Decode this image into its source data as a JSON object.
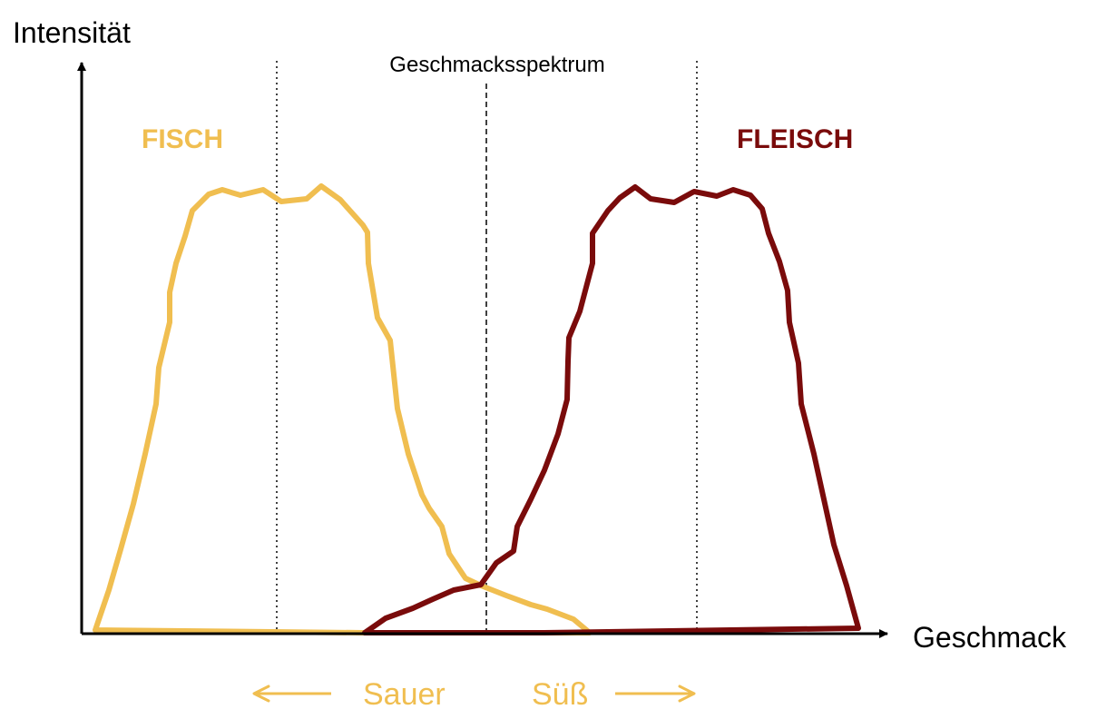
{
  "axes": {
    "y_label": "Intensität",
    "x_label": "Geschmack"
  },
  "center_label": "Geschmacksspektrum",
  "series": {
    "fisch": {
      "name": "FISCH",
      "color": "#F0BE50"
    },
    "fleisch": {
      "name": "FLEISCH",
      "color": "#7A0B0B"
    }
  },
  "direction": {
    "left_label": "Sauer",
    "right_label": "Süß",
    "color": "#F0BE50"
  }
}
